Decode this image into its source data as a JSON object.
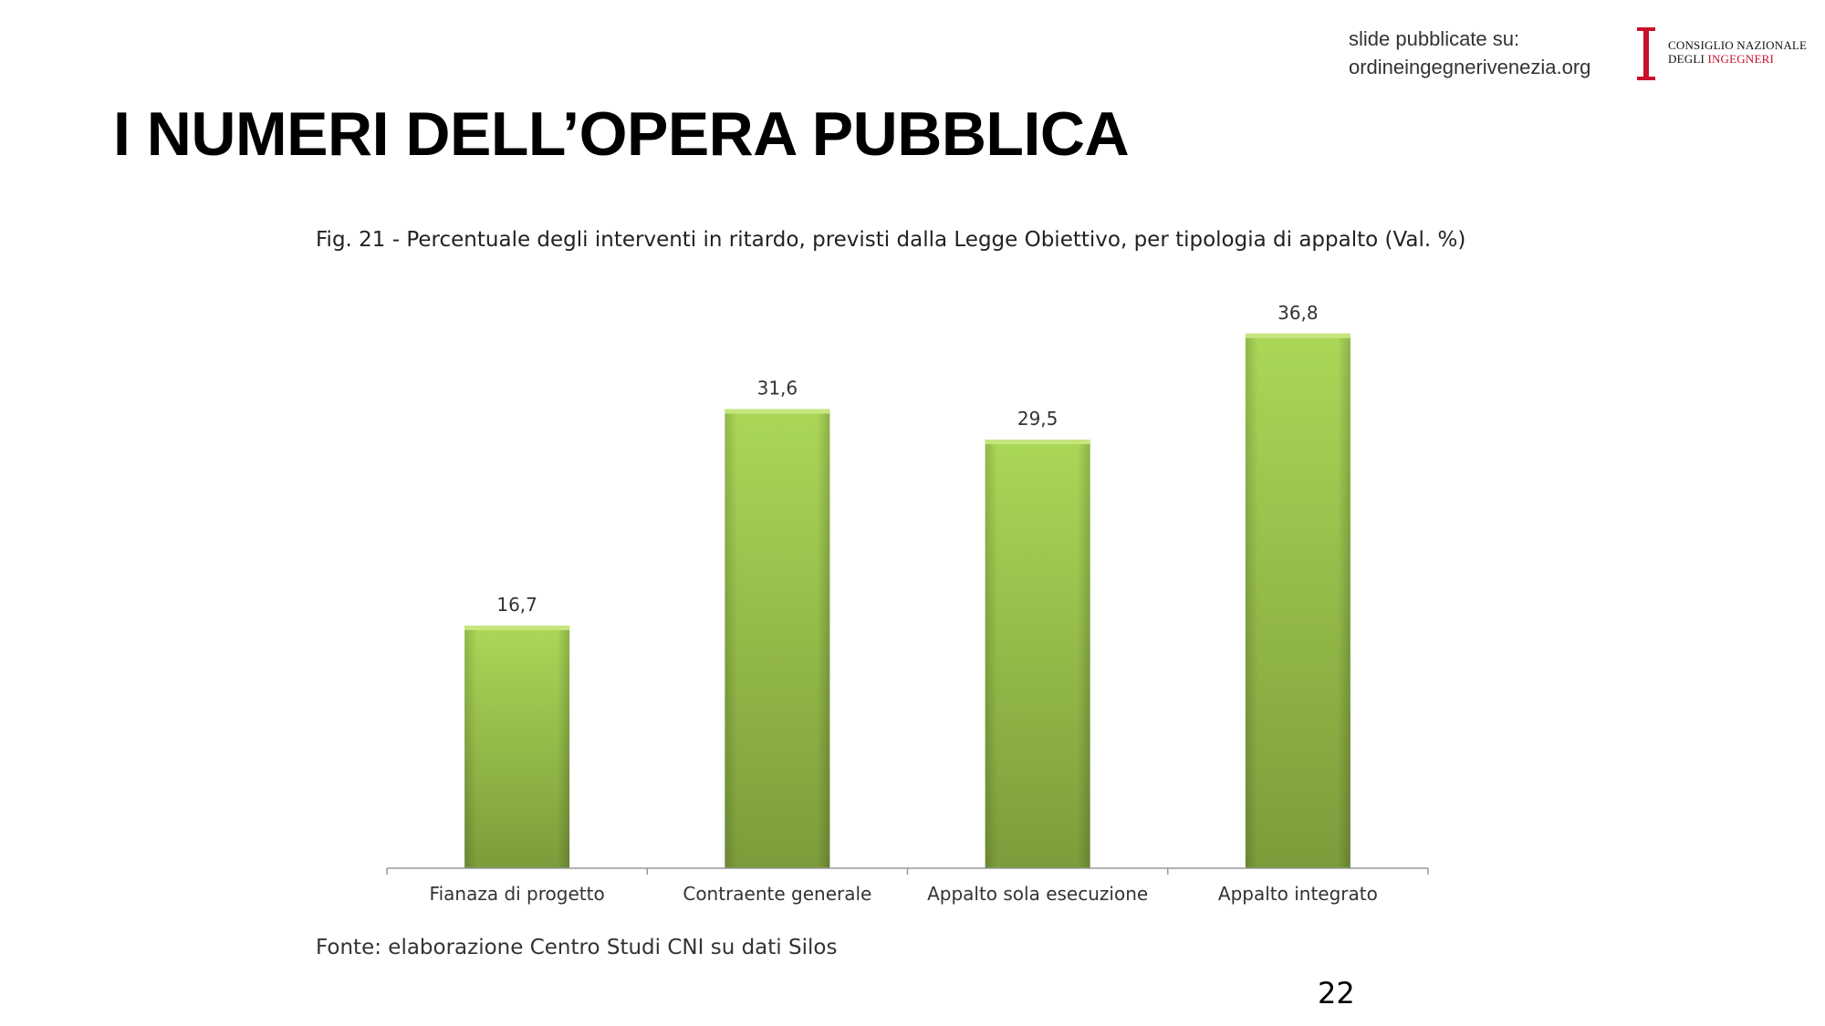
{
  "header": {
    "published_line1": "slide pubblicate su:",
    "published_line2": "ordineingegnerivenezia.org",
    "logo_line1": "CONSIGLIO NAZIONALE",
    "logo_line2a": "DEGLI ",
    "logo_line2b": "INGEGNERI"
  },
  "slide": {
    "title": "I NUMERI DELL’OPERA PUBBLICA",
    "page_number": "22"
  },
  "colors": {
    "bar_top": "#a9d556",
    "bar_bottom": "#7d9e3c",
    "logo_red": "#c8102e"
  },
  "chart_data": {
    "type": "bar",
    "title": "Fig. 21 - Percentuale degli interventi in ritardo, previsti dalla Legge Obiettivo, per tipologia di appalto (Val. %)",
    "categories": [
      "Fianaza di progetto",
      "Contraente generale",
      "Appalto sola esecuzione",
      "Appalto integrato"
    ],
    "values": [
      16.7,
      31.6,
      29.5,
      36.8
    ],
    "value_labels": [
      "16,7",
      "31,6",
      "29,5",
      "36,8"
    ],
    "xlabel": "",
    "ylabel": "",
    "ylim": [
      0,
      36.8
    ],
    "grid": false,
    "source": "Fonte: elaborazione Centro Studi CNI su dati Silos"
  }
}
